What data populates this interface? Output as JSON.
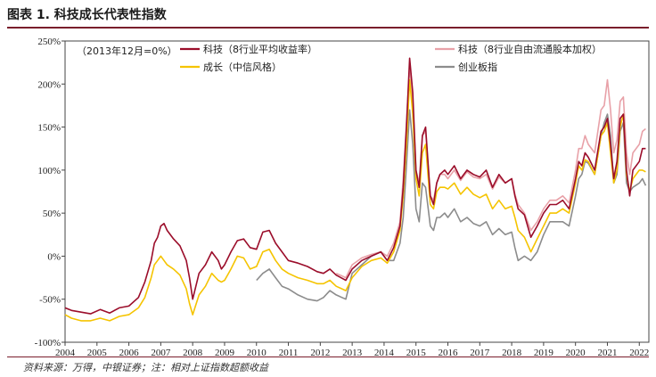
{
  "header": {
    "title": "图表 1. 科技成长代表性指数"
  },
  "footer": {
    "source": "资料来源：万得，中银证券；注：相对上证指数超额收益"
  },
  "chart_data": {
    "type": "line",
    "annotation": "（2013年12月=0%）",
    "ylim": [
      -100,
      250
    ],
    "yticks": [
      -100,
      -50,
      0,
      50,
      100,
      150,
      200,
      250
    ],
    "ytick_labels": [
      "-100%",
      "-50%",
      "0%",
      "50%",
      "100%",
      "150%",
      "200%",
      "250%"
    ],
    "xlim": [
      2004.0,
      2022.3
    ],
    "xticks": [
      2004,
      2005,
      2006,
      2007,
      2008,
      2009,
      2010,
      2011,
      2012,
      2013,
      2014,
      2015,
      2016,
      2017,
      2018,
      2019,
      2020,
      2021,
      2022
    ],
    "xtick_labels": [
      "2004",
      "2005",
      "2006",
      "2007",
      "2008",
      "2009",
      "2010",
      "2011",
      "2012",
      "2013",
      "2014",
      "2015",
      "2016",
      "2017",
      "2018",
      "2019",
      "2020",
      "2021",
      "2022"
    ],
    "series": [
      {
        "name": "科技（8行业平均收益率）",
        "color": "#9b0d2a",
        "x": [
          2004.0,
          2004.2,
          2004.5,
          2004.8,
          2005.1,
          2005.4,
          2005.7,
          2006.0,
          2006.3,
          2006.5,
          2006.7,
          2006.8,
          2006.9,
          2007.0,
          2007.1,
          2007.2,
          2007.4,
          2007.6,
          2007.8,
          2007.9,
          2008.0,
          2008.2,
          2008.4,
          2008.6,
          2008.8,
          2008.9,
          2009.0,
          2009.2,
          2009.4,
          2009.6,
          2009.8,
          2010.0,
          2010.2,
          2010.4,
          2010.6,
          2010.8,
          2011.0,
          2011.3,
          2011.6,
          2011.9,
          2012.1,
          2012.3,
          2012.5,
          2012.8,
          2013.0,
          2013.3,
          2013.6,
          2013.9,
          2014.1,
          2014.3,
          2014.5,
          2014.6,
          2014.7,
          2014.8,
          2014.9,
          2015.0,
          2015.1,
          2015.2,
          2015.3,
          2015.45,
          2015.55,
          2015.65,
          2015.75,
          2015.9,
          2016.0,
          2016.2,
          2016.4,
          2016.6,
          2016.8,
          2017.0,
          2017.2,
          2017.4,
          2017.6,
          2017.8,
          2018.0,
          2018.1,
          2018.2,
          2018.4,
          2018.6,
          2018.8,
          2019.0,
          2019.2,
          2019.4,
          2019.6,
          2019.8,
          2020.0,
          2020.1,
          2020.2,
          2020.3,
          2020.4,
          2020.6,
          2020.8,
          2020.9,
          2021.0,
          2021.1,
          2021.2,
          2021.3,
          2021.4,
          2021.5,
          2021.6,
          2021.7,
          2021.8,
          2022.0,
          2022.1,
          2022.2
        ],
        "y": [
          -60,
          -63,
          -65,
          -67,
          -62,
          -66,
          -60,
          -58,
          -48,
          -30,
          -5,
          15,
          22,
          35,
          38,
          30,
          20,
          12,
          -5,
          -25,
          -50,
          -20,
          -10,
          5,
          -5,
          -15,
          -10,
          5,
          18,
          20,
          10,
          8,
          28,
          30,
          15,
          5,
          -5,
          -8,
          -12,
          -18,
          -20,
          -15,
          -22,
          -28,
          -15,
          -5,
          0,
          5,
          -5,
          10,
          35,
          80,
          150,
          230,
          190,
          100,
          80,
          140,
          150,
          70,
          60,
          85,
          95,
          100,
          95,
          105,
          90,
          100,
          95,
          92,
          100,
          80,
          95,
          85,
          90,
          70,
          55,
          48,
          22,
          35,
          50,
          60,
          60,
          65,
          55,
          90,
          110,
          105,
          120,
          115,
          100,
          145,
          150,
          160,
          130,
          90,
          110,
          160,
          165,
          100,
          70,
          100,
          110,
          125,
          125
        ]
      },
      {
        "name": "成长（中信风格）",
        "color": "#f5c400",
        "x": [
          2004.0,
          2004.2,
          2004.5,
          2004.8,
          2005.1,
          2005.4,
          2005.7,
          2006.0,
          2006.3,
          2006.5,
          2006.7,
          2006.8,
          2006.9,
          2007.0,
          2007.1,
          2007.2,
          2007.4,
          2007.6,
          2007.8,
          2007.9,
          2008.0,
          2008.2,
          2008.4,
          2008.6,
          2008.8,
          2008.9,
          2009.0,
          2009.2,
          2009.4,
          2009.6,
          2009.8,
          2010.0,
          2010.2,
          2010.4,
          2010.6,
          2010.8,
          2011.0,
          2011.3,
          2011.6,
          2011.9,
          2012.1,
          2012.3,
          2012.5,
          2012.8,
          2013.0,
          2013.3,
          2013.6,
          2013.9,
          2014.1,
          2014.3,
          2014.5,
          2014.6,
          2014.7,
          2014.8,
          2014.9,
          2015.0,
          2015.1,
          2015.2,
          2015.3,
          2015.45,
          2015.55,
          2015.65,
          2015.75,
          2015.9,
          2016.0,
          2016.2,
          2016.4,
          2016.6,
          2016.8,
          2017.0,
          2017.2,
          2017.4,
          2017.6,
          2017.8,
          2018.0,
          2018.1,
          2018.2,
          2018.4,
          2018.6,
          2018.8,
          2019.0,
          2019.2,
          2019.4,
          2019.6,
          2019.8,
          2020.0,
          2020.1,
          2020.2,
          2020.3,
          2020.4,
          2020.6,
          2020.8,
          2020.9,
          2021.0,
          2021.1,
          2021.2,
          2021.3,
          2021.4,
          2021.5,
          2021.6,
          2021.7,
          2021.8,
          2022.0,
          2022.1,
          2022.2
        ],
        "y": [
          -68,
          -72,
          -75,
          -75,
          -72,
          -75,
          -70,
          -68,
          -60,
          -48,
          -25,
          -10,
          -5,
          0,
          -5,
          -10,
          -15,
          -22,
          -38,
          -55,
          -68,
          -45,
          -35,
          -20,
          -28,
          -30,
          -28,
          -15,
          0,
          -2,
          -15,
          -12,
          5,
          8,
          -5,
          -15,
          -20,
          -25,
          -28,
          -32,
          -32,
          -28,
          -35,
          -40,
          -25,
          -12,
          -5,
          -2,
          -8,
          5,
          30,
          70,
          130,
          205,
          165,
          90,
          70,
          120,
          130,
          60,
          55,
          75,
          80,
          80,
          78,
          85,
          72,
          80,
          72,
          68,
          72,
          55,
          65,
          55,
          58,
          45,
          30,
          22,
          5,
          20,
          35,
          50,
          50,
          55,
          50,
          85,
          105,
          100,
          112,
          110,
          95,
          140,
          145,
          155,
          120,
          85,
          100,
          150,
          165,
          95,
          75,
          90,
          100,
          100,
          98
        ]
      },
      {
        "name": "科技（8行业自由流通股本加权）",
        "color": "#e8a1a8",
        "x": [
          2012.5,
          2012.8,
          2013.0,
          2013.3,
          2013.6,
          2013.9,
          2014.1,
          2014.3,
          2014.5,
          2014.6,
          2014.7,
          2014.8,
          2014.9,
          2015.0,
          2015.1,
          2015.2,
          2015.3,
          2015.45,
          2015.55,
          2015.65,
          2015.75,
          2015.9,
          2016.0,
          2016.2,
          2016.4,
          2016.6,
          2016.8,
          2017.0,
          2017.2,
          2017.4,
          2017.6,
          2017.8,
          2018.0,
          2018.1,
          2018.2,
          2018.4,
          2018.6,
          2018.8,
          2019.0,
          2019.2,
          2019.4,
          2019.6,
          2019.8,
          2020.0,
          2020.1,
          2020.2,
          2020.3,
          2020.4,
          2020.6,
          2020.8,
          2020.9,
          2021.0,
          2021.1,
          2021.2,
          2021.3,
          2021.4,
          2021.5,
          2021.6,
          2021.7,
          2021.8,
          2022.0,
          2022.1,
          2022.2
        ],
        "y": [
          -20,
          -25,
          -10,
          -2,
          2,
          5,
          0,
          15,
          40,
          90,
          155,
          220,
          180,
          100,
          85,
          140,
          145,
          70,
          65,
          85,
          95,
          95,
          90,
          100,
          88,
          98,
          92,
          90,
          95,
          78,
          92,
          85,
          90,
          72,
          60,
          50,
          30,
          40,
          55,
          65,
          65,
          70,
          62,
          100,
          125,
          125,
          140,
          130,
          120,
          170,
          175,
          205,
          170,
          120,
          135,
          180,
          185,
          120,
          95,
          120,
          130,
          145,
          148
        ]
      },
      {
        "name": "创业板指",
        "color": "#8c8c8c",
        "x": [
          2010.0,
          2010.2,
          2010.4,
          2010.6,
          2010.8,
          2011.0,
          2011.3,
          2011.6,
          2011.9,
          2012.1,
          2012.3,
          2012.5,
          2012.8,
          2013.0,
          2013.3,
          2013.6,
          2013.9,
          2014.1,
          2014.3,
          2014.5,
          2014.6,
          2014.7,
          2014.8,
          2014.9,
          2015.0,
          2015.1,
          2015.2,
          2015.3,
          2015.45,
          2015.55,
          2015.65,
          2015.75,
          2015.9,
          2016.0,
          2016.2,
          2016.4,
          2016.6,
          2016.8,
          2017.0,
          2017.2,
          2017.4,
          2017.6,
          2017.8,
          2018.0,
          2018.1,
          2018.2,
          2018.4,
          2018.6,
          2018.8,
          2019.0,
          2019.2,
          2019.4,
          2019.6,
          2019.8,
          2020.0,
          2020.1,
          2020.2,
          2020.3,
          2020.4,
          2020.6,
          2020.8,
          2020.9,
          2021.0,
          2021.1,
          2021.2,
          2021.3,
          2021.4,
          2021.5,
          2021.6,
          2021.7,
          2021.8,
          2022.0,
          2022.1,
          2022.2
        ],
        "y": [
          -28,
          -20,
          -15,
          -25,
          -35,
          -38,
          -45,
          -50,
          -52,
          -48,
          -40,
          -45,
          -50,
          -20,
          -10,
          0,
          5,
          -5,
          -5,
          15,
          45,
          105,
          170,
          130,
          55,
          40,
          85,
          80,
          35,
          30,
          45,
          45,
          50,
          45,
          55,
          40,
          45,
          38,
          35,
          40,
          25,
          32,
          25,
          28,
          10,
          -5,
          0,
          -5,
          5,
          25,
          40,
          40,
          40,
          35,
          70,
          90,
          95,
          110,
          108,
          95,
          140,
          155,
          165,
          140,
          85,
          95,
          145,
          155,
          85,
          75,
          80,
          85,
          90,
          82
        ]
      }
    ]
  }
}
